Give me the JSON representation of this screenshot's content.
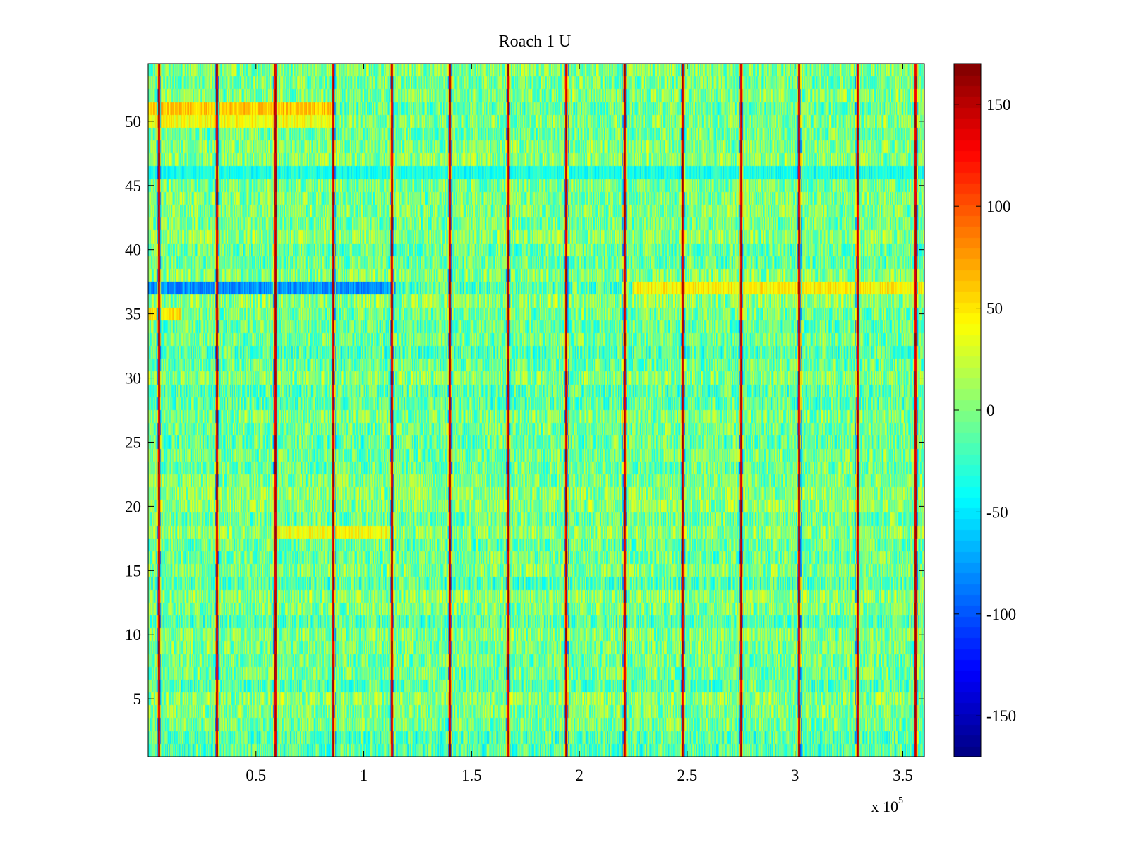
{
  "chart_data": {
    "type": "heatmap",
    "title": "Roach 1 U",
    "xlabel": "",
    "ylabel": "",
    "x_exponent_label": "x 10",
    "x_exponent_power": "5",
    "xlim": [
      0,
      3.6
    ],
    "ylim": [
      0.5,
      54.5
    ],
    "x_ticks": [
      0.5,
      1,
      1.5,
      2,
      2.5,
      3,
      3.5
    ],
    "x_tick_labels": [
      "0.5",
      "1",
      "1.5",
      "2",
      "2.5",
      "3",
      "3.5"
    ],
    "y_ticks": [
      5,
      10,
      15,
      20,
      25,
      30,
      35,
      40,
      45,
      50
    ],
    "y_tick_labels": [
      "5",
      "10",
      "15",
      "20",
      "25",
      "30",
      "35",
      "40",
      "45",
      "50"
    ],
    "n_rows": 54,
    "row_centers_range": [
      1,
      54
    ],
    "colormap": "jet",
    "colorbar": {
      "clim": [
        -170,
        170
      ],
      "ticks": [
        -150,
        -100,
        -50,
        0,
        50,
        100,
        150
      ],
      "tick_labels": [
        "-150",
        "-100",
        "-50",
        "0",
        "50",
        "100",
        "150"
      ]
    },
    "baseline_value_range": [
      -45,
      35
    ],
    "periodic_spikes": {
      "description": "vertical high-value stripes across all rows",
      "x_positions": [
        0.05,
        0.32,
        0.59,
        0.86,
        1.13,
        1.4,
        1.67,
        1.94,
        2.21,
        2.48,
        2.75,
        3.02,
        3.29,
        3.56
      ],
      "peak_value": 160
    },
    "row_features": [
      {
        "rows": [
          37,
          37
        ],
        "x_range": [
          0,
          1.15
        ],
        "mean_value": -80,
        "note": "blue band"
      },
      {
        "rows": [
          37,
          37
        ],
        "x_range": [
          2.25,
          3.6
        ],
        "mean_value": 45,
        "note": "yellow/orange band"
      },
      {
        "rows": [
          51,
          51
        ],
        "x_range": [
          0,
          0.85
        ],
        "mean_value": 60,
        "note": "orange band"
      },
      {
        "rows": [
          50,
          50
        ],
        "x_range": [
          0,
          0.85
        ],
        "mean_value": 40
      },
      {
        "rows": [
          46,
          46
        ],
        "x_range": [
          0,
          3.6
        ],
        "mean_value": -35
      },
      {
        "rows": [
          18,
          18
        ],
        "x_range": [
          0.6,
          1.15
        ],
        "mean_value": 40
      },
      {
        "rows": [
          35,
          35
        ],
        "x_range": [
          0,
          0.15
        ],
        "mean_value": 50
      }
    ]
  }
}
